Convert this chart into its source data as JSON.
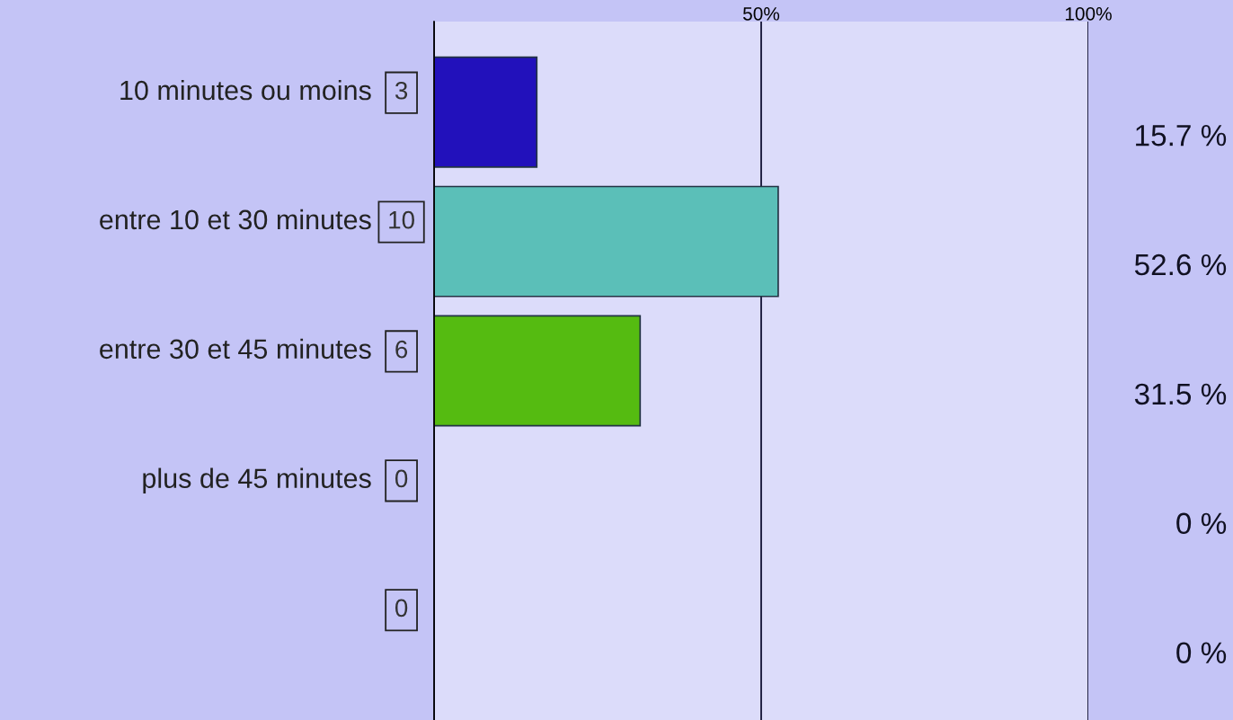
{
  "chart_data": {
    "type": "bar",
    "orientation": "horizontal",
    "categories": [
      "10 minutes ou moins",
      "entre 10 et 30 minutes",
      "entre 30 et 45 minutes",
      "plus de 45 minutes",
      null
    ],
    "values": [
      15.7,
      52.6,
      31.5,
      0,
      0
    ],
    "colors": [
      "#2211bb",
      "#5bbfb8",
      "#55bb11",
      "#888888",
      "#888888"
    ],
    "value_labels": [
      "15.7 %",
      "52.6 %",
      "31.5 %",
      "0 %",
      "0 %"
    ],
    "annotations": [
      "3",
      "10",
      "6",
      "0",
      "0"
    ],
    "xlim": [
      0,
      100
    ],
    "xticks": [
      {
        "value": 0,
        "label": null
      },
      {
        "value": 50,
        "label": "50%"
      },
      {
        "value": 100,
        "label": "100%"
      }
    ],
    "grid": "x",
    "legend": false
  }
}
